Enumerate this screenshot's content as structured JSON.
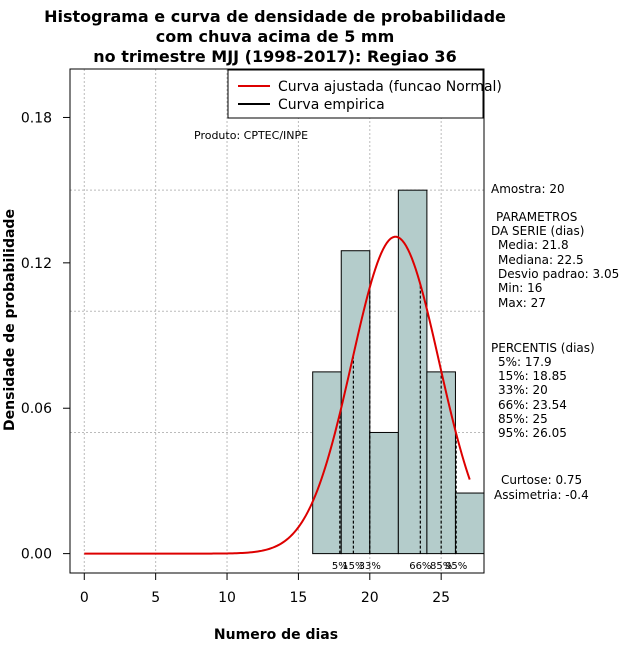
{
  "chart_data": {
    "type": "bar",
    "title_lines": [
      "Histograma e curva de densidade de probabilidade",
      "com chuva acima de 5 mm",
      "no trimestre MJJ (1998-2017): Regiao 36"
    ],
    "xlabel": "Numero de dias",
    "ylabel": "Densidade de probabilidade",
    "xlim": [
      -1,
      28
    ],
    "ylim": [
      -0.008,
      0.2
    ],
    "x_ticks": [
      0,
      5,
      10,
      15,
      20,
      25
    ],
    "y_ticks": [
      0.0,
      0.06,
      0.12,
      0.18
    ],
    "y_tick_labels": [
      "0.00",
      "0.06",
      "0.12",
      "0.18"
    ],
    "grid_x": [
      0,
      5,
      10,
      15,
      20,
      25
    ],
    "grid_y": [
      0.05,
      0.1,
      0.15
    ],
    "histogram": {
      "bin_edges": [
        16,
        18,
        20,
        22,
        24,
        26,
        28
      ],
      "density": [
        0.075,
        0.125,
        0.05,
        0.15,
        0.075,
        0.025
      ],
      "fill_color": "#b4cccb"
    },
    "fitted_curve": {
      "name": "Curva ajustada (funcao Normal)",
      "color": "#dd0000",
      "mean": 21.8,
      "sd": 3.05,
      "x_range": [
        0,
        27
      ]
    },
    "legend": [
      {
        "label": "Curva ajustada (funcao Normal)",
        "color": "#dd0000"
      },
      {
        "label": "Curva empirica",
        "color": "#000000"
      }
    ],
    "percentile_lines": [
      {
        "x": 17.9,
        "label": "5%"
      },
      {
        "x": 18.85,
        "label": "15%"
      },
      {
        "x": 20,
        "label": "33%"
      },
      {
        "x": 23.54,
        "label": "66%"
      },
      {
        "x": 25,
        "label": "85%"
      },
      {
        "x": 26.05,
        "label": "95%"
      }
    ],
    "product_note": "Produto: CPTEC/INPE",
    "side_panel": {
      "amostra": "Amostra: 20",
      "params_title_1": "PARAMETROS",
      "params_title_2": "DA SERIE (dias)",
      "params": [
        "Media: 21.8",
        "Mediana: 22.5",
        "Desvio padrao: 3.05",
        "Min: 16",
        "Max: 27"
      ],
      "percentis_title": "PERCENTIS (dias)",
      "percentis": [
        "5%: 17.9",
        "15%: 18.85",
        "33%: 20",
        "66%: 23.54",
        "85%: 25",
        "95%: 26.05"
      ],
      "curtose": "Curtose: 0.75",
      "assimetria": "Assimetria: -0.4"
    }
  }
}
